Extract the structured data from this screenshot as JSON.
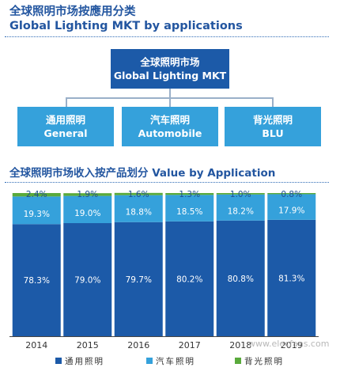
{
  "header": {
    "title_cn": "全球照明市场按應用分类",
    "title_en": "Global Lighting MKT by applications"
  },
  "tree": {
    "root": {
      "cn": "全球照明市场",
      "en": "Global Lighting MKT"
    },
    "categories": [
      {
        "cn": "通用照明",
        "en": "General"
      },
      {
        "cn": "汽车照明",
        "en": "Automobile"
      },
      {
        "cn": "背光照明",
        "en": "BLU"
      }
    ]
  },
  "chart_section_title": "全球照明市场收入按产品划分 Value by Application",
  "watermark": "www.elecfans.com",
  "colors": {
    "general": "#1c5aa8",
    "automobile": "#35a1db",
    "blu": "#5aaa3c",
    "axis": "#444444"
  },
  "chart_data": {
    "type": "bar",
    "stacked": true,
    "categories": [
      "2014",
      "2015",
      "2016",
      "2017",
      "2018",
      "2019"
    ],
    "series": [
      {
        "name": "通用照明",
        "values": [
          78.3,
          79.0,
          79.7,
          80.2,
          80.8,
          81.3
        ],
        "labels": [
          "78.3%",
          "79.0%",
          "79.7%",
          "80.2%",
          "80.8%",
          "81.3%"
        ]
      },
      {
        "name": "汽车照明",
        "values": [
          19.3,
          19.0,
          18.8,
          18.5,
          18.2,
          17.9
        ],
        "labels": [
          "19.3%",
          "19.0%",
          "18.8%",
          "18.5%",
          "18.2%",
          "17.9%"
        ]
      },
      {
        "name": "背光照明",
        "values": [
          2.4,
          1.9,
          1.6,
          1.3,
          1.0,
          0.8
        ],
        "labels": [
          "2.4%",
          "1.9%",
          "1.6%",
          "1.3%",
          "1.0%",
          "0.8%"
        ]
      }
    ],
    "ylim": [
      0,
      100
    ],
    "legend_position": "bottom"
  }
}
